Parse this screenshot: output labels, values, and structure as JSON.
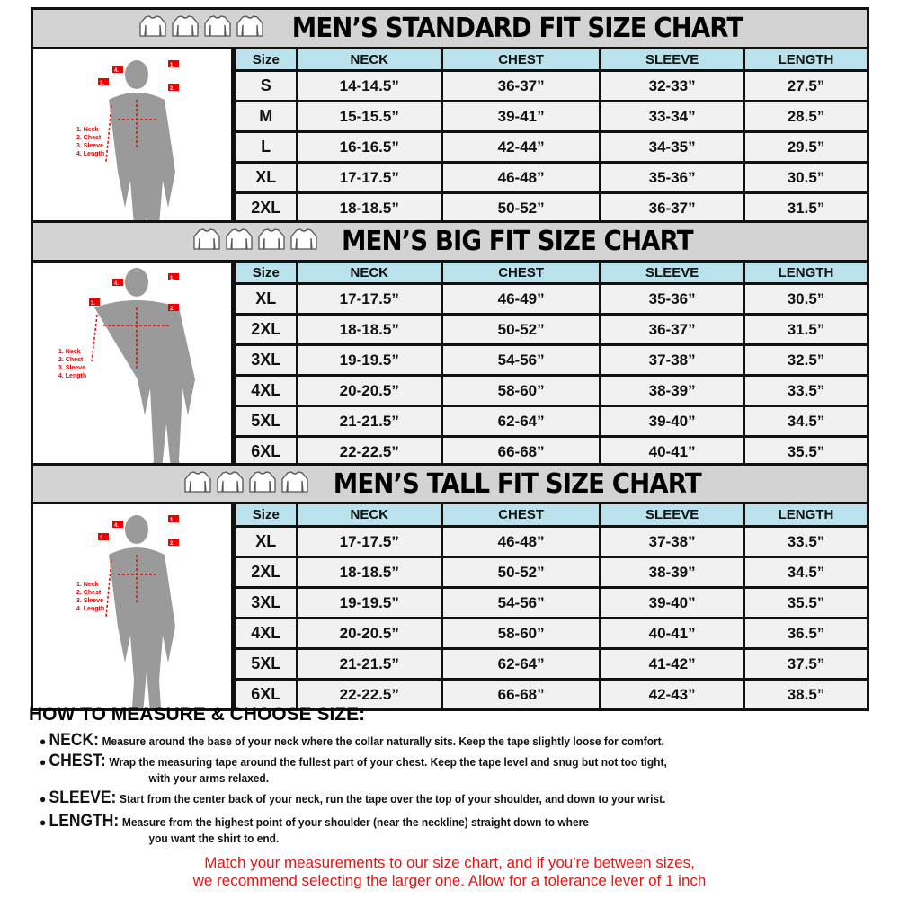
{
  "charts": [
    {
      "title": "MEN’S STANDARD FIT SIZE CHART",
      "headers": [
        "Size",
        "NECK",
        "CHEST",
        "SLEEVE",
        "LENGTH"
      ],
      "rows": [
        [
          "S",
          "14-14.5”",
          "36-37”",
          "32-33”",
          "27.5”"
        ],
        [
          "M",
          "15-15.5”",
          "39-41”",
          "33-34”",
          "28.5”"
        ],
        [
          "L",
          "16-16.5”",
          "42-44”",
          "34-35”",
          "29.5”"
        ],
        [
          "XL",
          "17-17.5”",
          "46-48”",
          "35-36”",
          "30.5”"
        ],
        [
          "2XL",
          "18-18.5”",
          "50-52”",
          "36-37”",
          "31.5”"
        ]
      ]
    },
    {
      "title": "MEN’S BIG FIT SIZE CHART",
      "headers": [
        "Size",
        "NECK",
        "CHEST",
        "SLEEVE",
        "LENGTH"
      ],
      "rows": [
        [
          "XL",
          "17-17.5”",
          "46-49”",
          "35-36”",
          "30.5”"
        ],
        [
          "2XL",
          "18-18.5”",
          "50-52”",
          "36-37”",
          "31.5”"
        ],
        [
          "3XL",
          "19-19.5”",
          "54-56”",
          "37-38”",
          "32.5”"
        ],
        [
          "4XL",
          "20-20.5”",
          "58-60”",
          "38-39”",
          "33.5”"
        ],
        [
          "5XL",
          "21-21.5”",
          "62-64”",
          "39-40”",
          "34.5”"
        ],
        [
          "6XL",
          "22-22.5”",
          "66-68”",
          "40-41”",
          "35.5”"
        ]
      ]
    },
    {
      "title": "MEN’S TALL FIT SIZE CHART",
      "headers": [
        "Size",
        "NECK",
        "CHEST",
        "SLEEVE",
        "LENGTH"
      ],
      "rows": [
        [
          "XL",
          "17-17.5”",
          "46-48”",
          "37-38”",
          "33.5”"
        ],
        [
          "2XL",
          "18-18.5”",
          "50-52”",
          "38-39”",
          "34.5”"
        ],
        [
          "3XL",
          "19-19.5”",
          "54-56”",
          "39-40”",
          "35.5”"
        ],
        [
          "4XL",
          "20-20.5”",
          "58-60”",
          "40-41”",
          "36.5”"
        ],
        [
          "5XL",
          "21-21.5”",
          "62-64”",
          "41-42”",
          "37.5”"
        ],
        [
          "6XL",
          "22-22.5”",
          "66-68”",
          "42-43”",
          "38.5”"
        ]
      ]
    }
  ],
  "figure": {
    "markers": [
      "1.",
      "2.",
      "3.",
      "4."
    ],
    "legend": [
      "1. Neck",
      "2. Chest",
      "3. Sleeve",
      "4. Length"
    ]
  },
  "how": {
    "title": "HOW TO MEASURE & CHOOSE SIZE:",
    "items": [
      {
        "key": "NECK:",
        "text": "Measure around the base of your neck where the collar naturally sits. Keep the tape slightly loose for comfort.",
        "cont": ""
      },
      {
        "key": "CHEST:",
        "text": "Wrap the measuring tape around the fullest part of your chest. Keep the tape level and snug but not too tight,",
        "cont": "with your arms relaxed."
      },
      {
        "key": "SLEEVE:",
        "text": "Start from the center back of your neck, run the tape over the top of your shoulder, and down to your wrist.",
        "cont": ""
      },
      {
        "key": "LENGTH:",
        "text": "Measure from the highest point of your shoulder (near the neckline) straight down to where",
        "cont": "you want the shirt to end."
      }
    ],
    "note": [
      "Match your measurements to our size chart, and if you're between sizes,",
      "we recommend selecting the larger one. Allow for a tolerance lever of 1 inch"
    ]
  },
  "colors": {
    "header_bg": "#d3d3d3",
    "col_header": "#b9e2ed",
    "accent_red": "#e81414"
  }
}
